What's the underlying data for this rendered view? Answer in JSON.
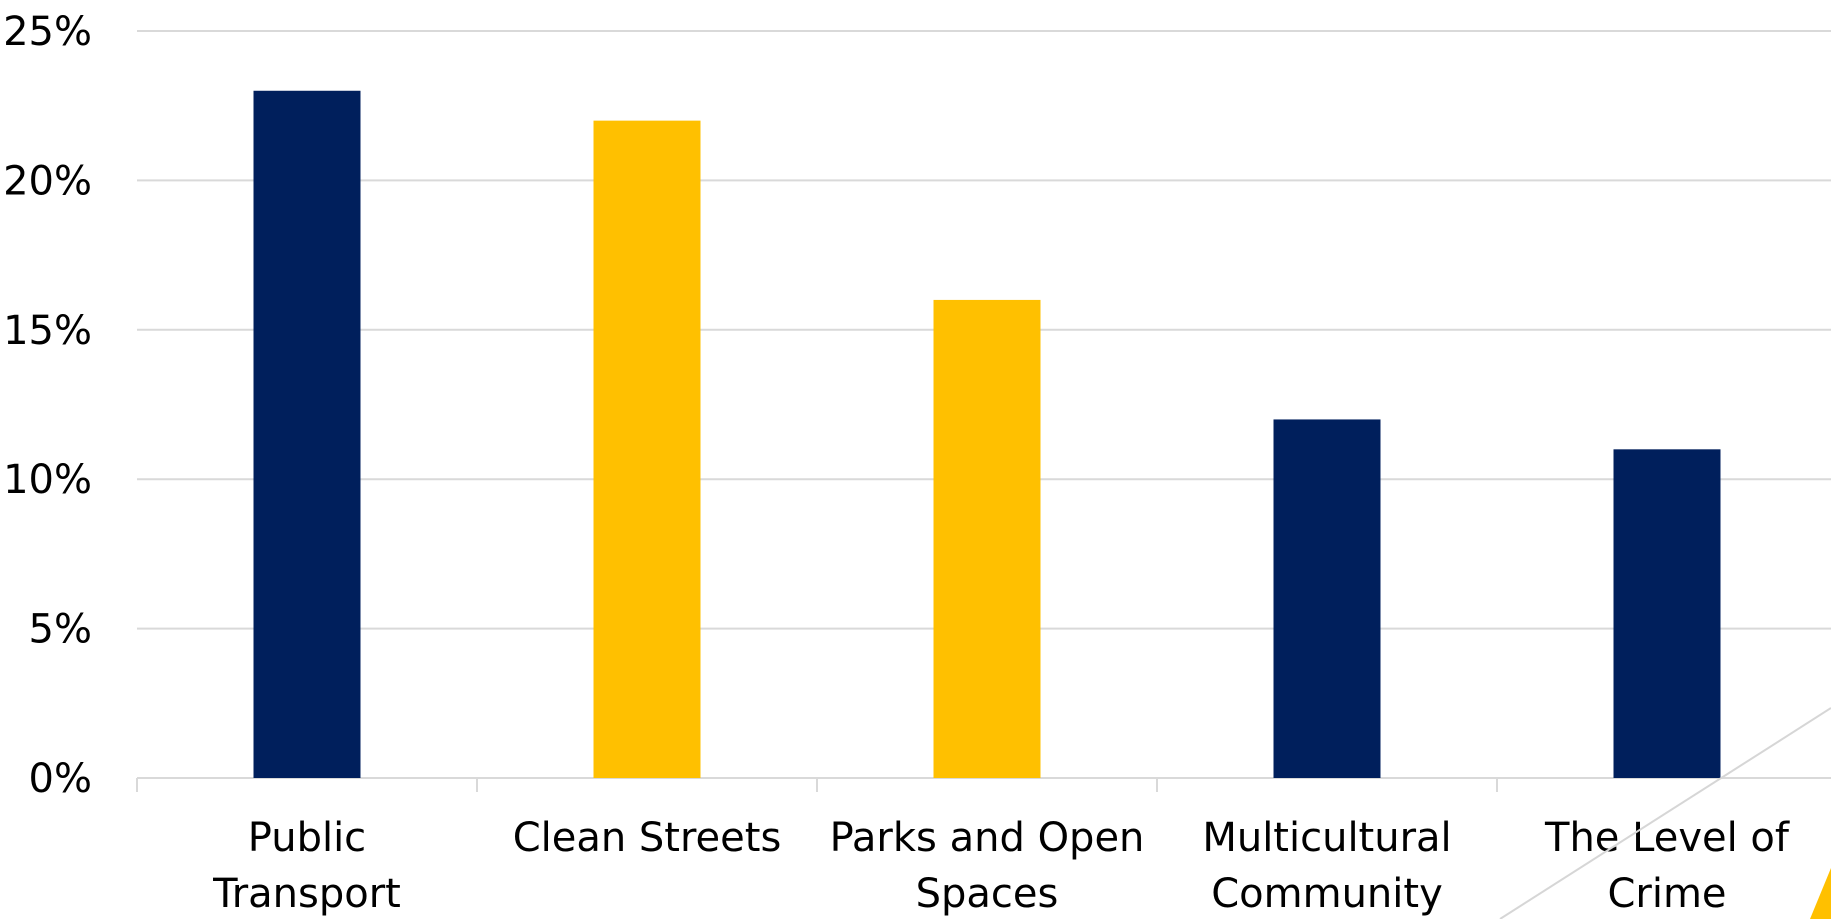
{
  "chart_data": {
    "type": "bar",
    "categories": [
      [
        "Public",
        "Transport"
      ],
      [
        "Clean Streets"
      ],
      [
        "Parks and Open",
        "Spaces"
      ],
      [
        "Multicultural",
        "Community"
      ],
      [
        "The Level of",
        "Crime"
      ]
    ],
    "values": [
      0.23,
      0.22,
      0.16,
      0.12,
      0.11
    ],
    "bar_colors": [
      "#001F5C",
      "#FFC000",
      "#FFC000",
      "#001F5C",
      "#001F5C"
    ],
    "ylim": [
      0,
      0.25
    ],
    "yticks": [
      {
        "value": 0,
        "label": "0%"
      },
      {
        "value": 0.05,
        "label": "5%"
      },
      {
        "value": 0.1,
        "label": "10%"
      },
      {
        "value": 0.15,
        "label": "15%"
      },
      {
        "value": 0.2,
        "label": "20%"
      },
      {
        "value": 0.25,
        "label": "25%"
      }
    ],
    "grid": true,
    "legend": "none"
  }
}
